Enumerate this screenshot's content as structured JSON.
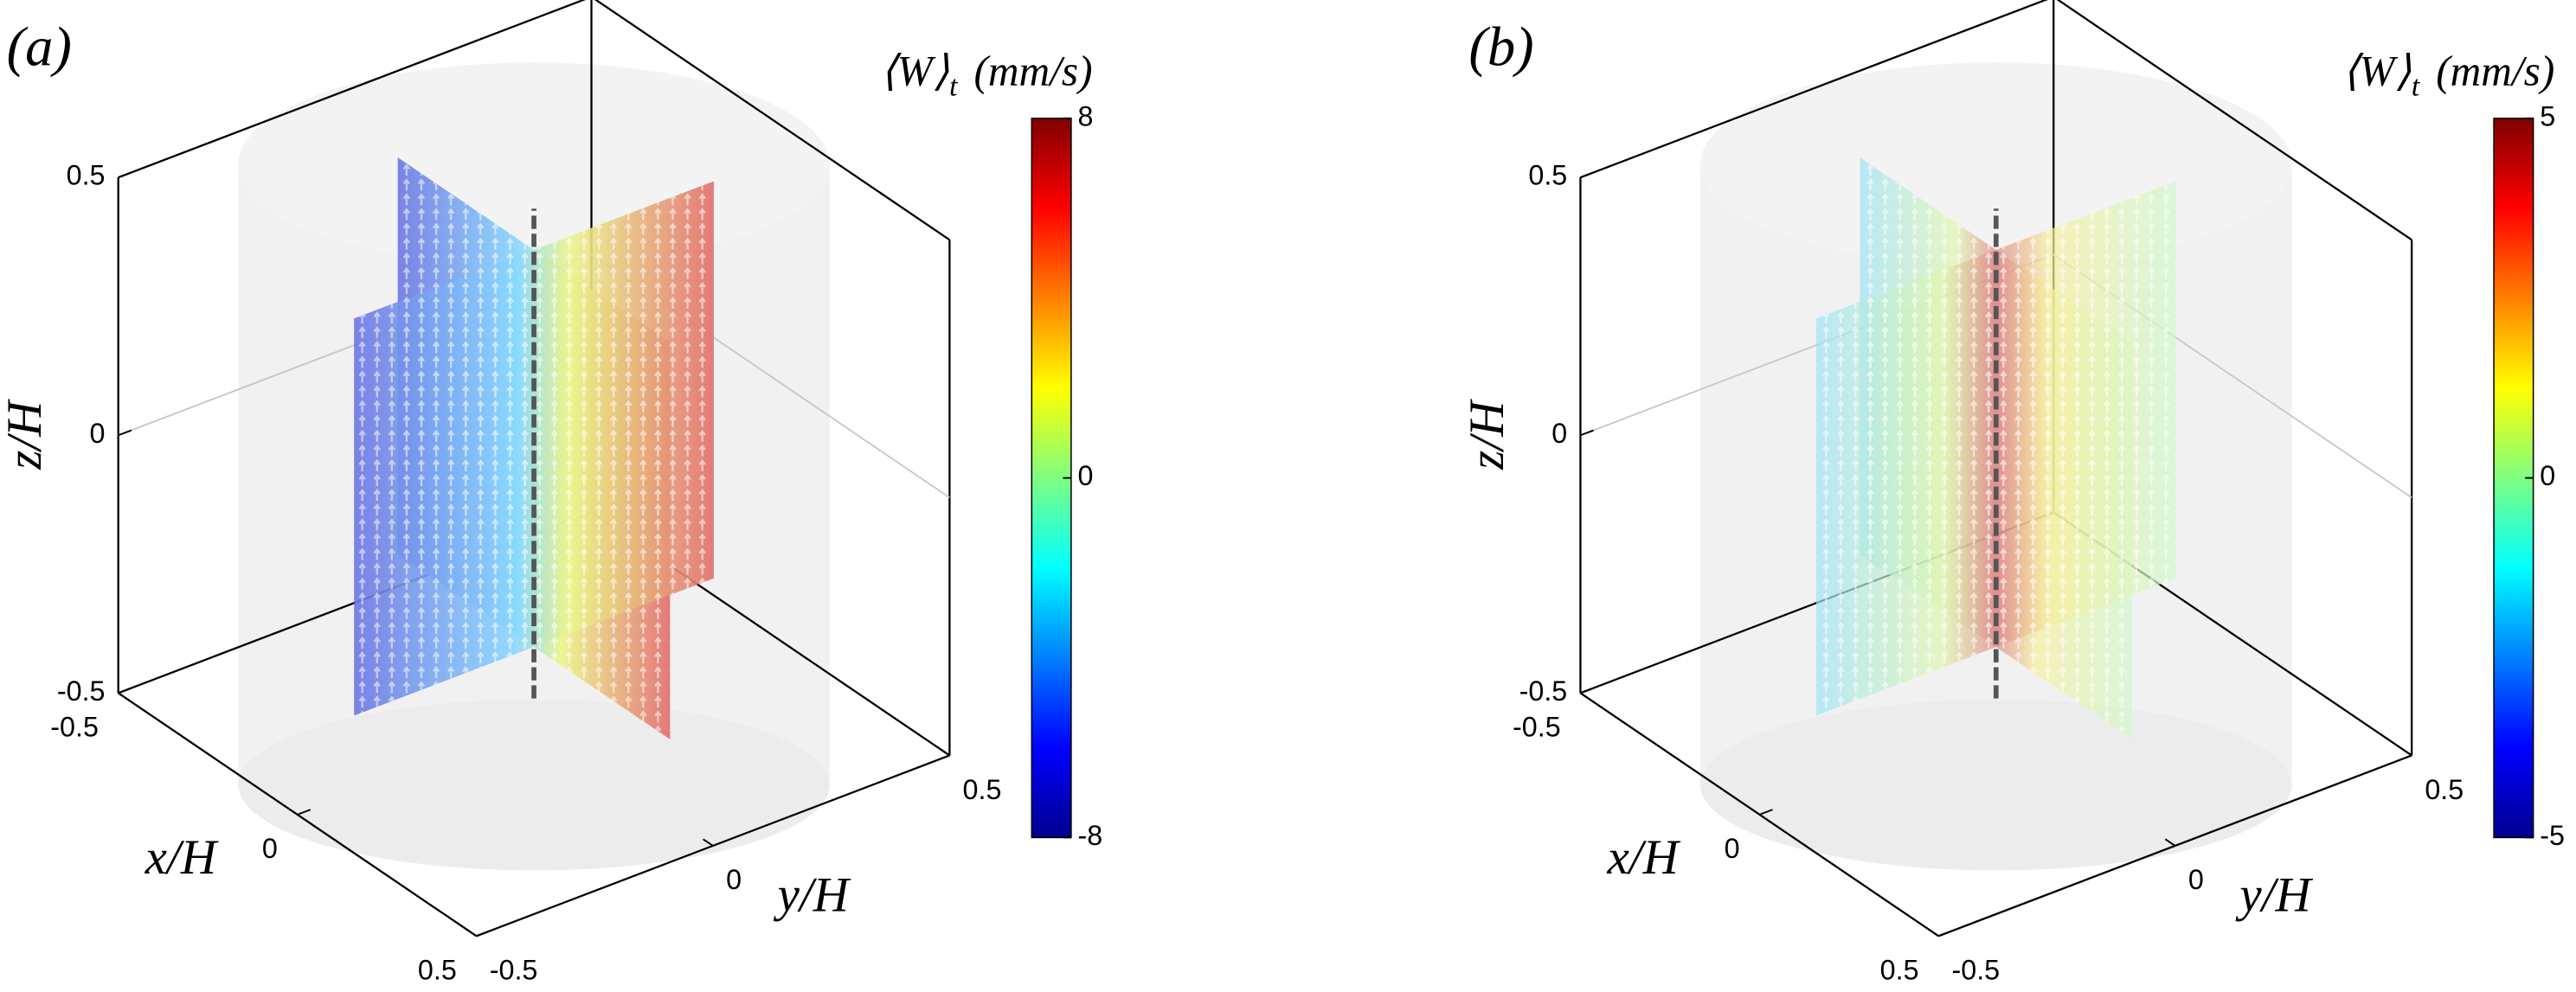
{
  "chart_data": [
    {
      "type": "quiver3d",
      "panel_label": "(a)",
      "colorbar_label": {
        "base": "⟨W⟩",
        "sub": "t",
        "unit": "(mm/s)"
      },
      "clim": [
        -8,
        8
      ],
      "cticks": [
        -8,
        0,
        8
      ],
      "xlabel": "x/H",
      "ylabel": "y/H",
      "zlabel": "z/H",
      "xlim": [
        -0.5,
        0.5
      ],
      "ylim": [
        -0.5,
        0.5
      ],
      "zlim": [
        -0.5,
        0.5
      ],
      "xticks": [
        -0.5,
        0,
        0.5
      ],
      "yticks": [
        -0.5,
        0,
        0.5
      ],
      "zticks": [
        -0.5,
        0,
        0.5
      ]
    },
    {
      "type": "quiver3d",
      "panel_label": "(b)",
      "colorbar_label": {
        "base": "⟨W⟩",
        "sub": "t",
        "unit": "(mm/s)"
      },
      "clim": [
        -5,
        5
      ],
      "cticks": [
        -5,
        0,
        5
      ],
      "xlabel": "x/H",
      "ylabel": "y/H",
      "zlabel": "z/H",
      "xlim": [
        -0.5,
        0.5
      ],
      "ylim": [
        -0.5,
        0.5
      ],
      "zlim": [
        -0.5,
        0.5
      ],
      "xticks": [
        -0.5,
        0,
        0.5
      ],
      "yticks": [
        -0.5,
        0,
        0.5
      ],
      "zticks": [
        -0.5,
        0,
        0.5
      ]
    }
  ]
}
